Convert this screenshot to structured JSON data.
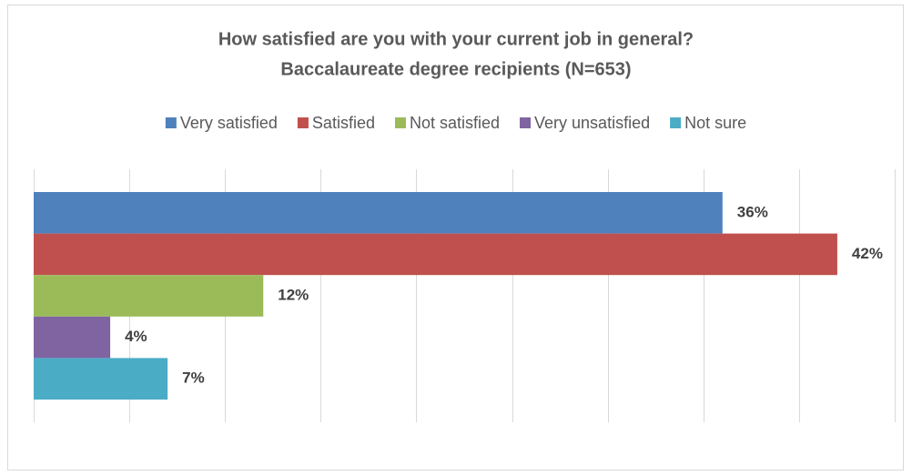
{
  "chart_data": {
    "type": "bar",
    "orientation": "horizontal",
    "title": "How satisfied are you with your current job in general?",
    "subtitle": "Baccalaureate degree recipients (N=653)",
    "categories": [
      null
    ],
    "series": [
      {
        "name": "Very satisfied",
        "color": "#4f81bd",
        "values": [
          36
        ],
        "value_labels": [
          "36%"
        ]
      },
      {
        "name": "Satisfied",
        "color": "#c0504d",
        "values": [
          42
        ],
        "value_labels": [
          "42%"
        ]
      },
      {
        "name": "Not satisfied",
        "color": "#9bbb59",
        "values": [
          12
        ],
        "value_labels": [
          "12%"
        ]
      },
      {
        "name": "Very unsatisfied",
        "color": "#8064a2",
        "values": [
          4
        ],
        "value_labels": [
          "4%"
        ]
      },
      {
        "name": "Not sure",
        "color": "#4bacc6",
        "values": [
          7
        ],
        "value_labels": [
          "7%"
        ]
      }
    ],
    "xlim": [
      0,
      45
    ],
    "xticks": [
      0,
      5,
      10,
      15,
      20,
      25,
      30,
      35,
      40,
      45
    ],
    "grid": true,
    "legend": "top"
  }
}
